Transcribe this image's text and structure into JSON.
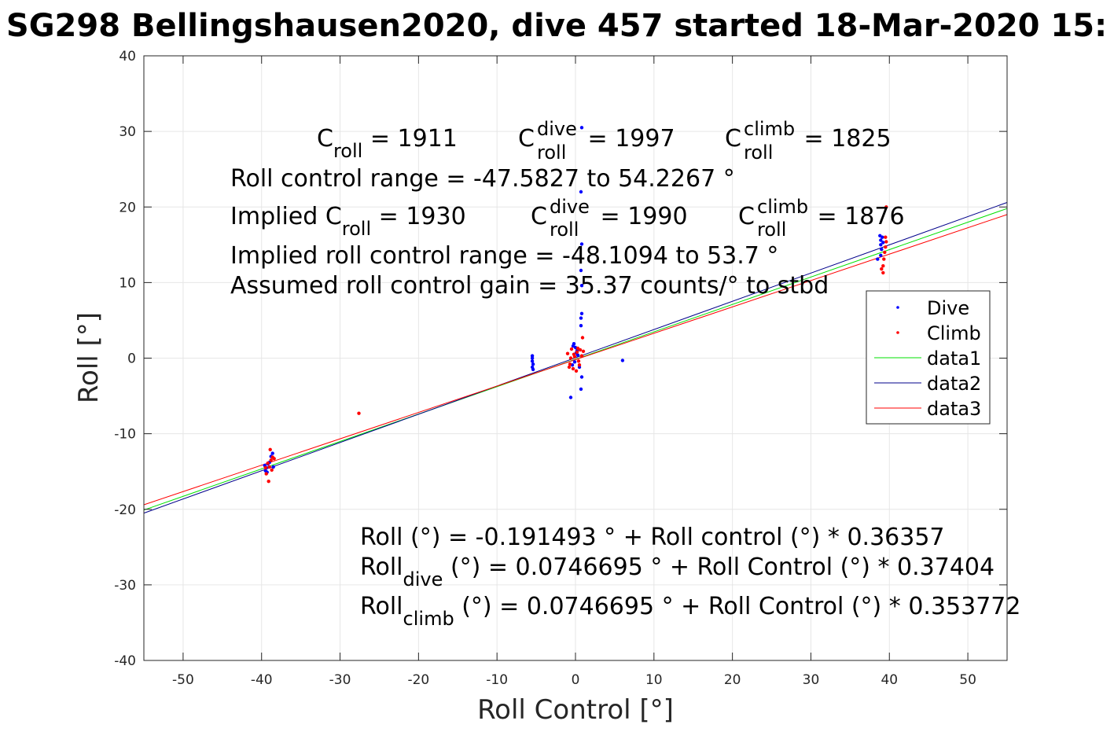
{
  "chart_data": {
    "type": "scatter",
    "title": "SG298 Bellingshausen2020, dive 457 started 18-Mar-2020 15:",
    "xlabel": "Roll Control [°]",
    "ylabel": "Roll [°]",
    "xlim": [
      -55,
      55
    ],
    "ylim": [
      -40,
      40
    ],
    "xticks": [
      -50,
      -40,
      -30,
      -20,
      -10,
      0,
      10,
      20,
      30,
      40,
      50
    ],
    "yticks": [
      -40,
      -30,
      -20,
      -10,
      0,
      10,
      20,
      30,
      40
    ],
    "xtick_labels": [
      "-50",
      "-40",
      "-30",
      "-20",
      "-10",
      "0",
      "10",
      "20",
      "30",
      "40",
      "50"
    ],
    "ytick_labels": [
      "-40",
      "-30",
      "-20",
      "-10",
      "0",
      "10",
      "20",
      "30",
      "40"
    ],
    "grid": true,
    "legend_position": "right",
    "series": [
      {
        "name": "Dive",
        "kind": "scatter",
        "color": "#0000ff",
        "points": [
          [
            -39.6,
            -14.2
          ],
          [
            -39.5,
            -14.9
          ],
          [
            -39.3,
            -15.1
          ],
          [
            -39.4,
            -14.5
          ],
          [
            -39.0,
            -13.8
          ],
          [
            -38.8,
            -13.0
          ],
          [
            -38.6,
            -12.6
          ],
          [
            -38.5,
            -14.4
          ],
          [
            -39.2,
            -14.0
          ],
          [
            -5.5,
            0.0
          ],
          [
            -5.5,
            -0.4
          ],
          [
            -5.4,
            -0.8
          ],
          [
            -5.5,
            -1.2
          ],
          [
            -5.4,
            -1.5
          ],
          [
            -5.5,
            0.3
          ],
          [
            -0.6,
            -5.2
          ],
          [
            -0.3,
            1.6
          ],
          [
            -0.2,
            1.9
          ],
          [
            0.0,
            1.4
          ],
          [
            0.2,
            1.0
          ],
          [
            0.3,
            0.4
          ],
          [
            -0.1,
            -0.5
          ],
          [
            0.5,
            -1.2
          ],
          [
            0.8,
            30.5
          ],
          [
            0.7,
            22.0
          ],
          [
            0.8,
            15.1
          ],
          [
            0.7,
            11.6
          ],
          [
            0.8,
            9.6
          ],
          [
            0.8,
            5.9
          ],
          [
            0.7,
            5.3
          ],
          [
            0.7,
            4.3
          ],
          [
            0.8,
            -2.5
          ],
          [
            0.7,
            -4.1
          ],
          [
            -0.4,
            -0.9
          ],
          [
            0.1,
            0.7
          ],
          [
            6.0,
            -0.3
          ],
          [
            38.5,
            13.1
          ],
          [
            38.8,
            16.2
          ],
          [
            38.9,
            15.6
          ],
          [
            38.9,
            15.0
          ],
          [
            39.0,
            14.4
          ],
          [
            38.9,
            13.6
          ],
          [
            39.1,
            16.0
          ],
          [
            39.2,
            15.3
          ]
        ]
      },
      {
        "name": "Climb",
        "kind": "scatter",
        "color": "#ff0000",
        "points": [
          [
            -39.5,
            -14.5
          ],
          [
            -39.4,
            -15.3
          ],
          [
            -39.1,
            -16.3
          ],
          [
            -38.9,
            -12.1
          ],
          [
            -38.8,
            -13.5
          ],
          [
            -38.4,
            -13.3
          ],
          [
            -38.7,
            -14.8
          ],
          [
            -39.2,
            -13.9
          ],
          [
            -38.6,
            -13.1
          ],
          [
            -39.0,
            -14.4
          ],
          [
            -27.6,
            -7.3
          ],
          [
            -1.0,
            0.6
          ],
          [
            -0.7,
            -0.8
          ],
          [
            -0.5,
            1.2
          ],
          [
            -0.3,
            -1.4
          ],
          [
            -0.1,
            0.2
          ],
          [
            0.2,
            0.8
          ],
          [
            0.4,
            -0.4
          ],
          [
            0.6,
            1.1
          ],
          [
            0.9,
            2.7
          ],
          [
            0.8,
            0.3
          ],
          [
            -0.8,
            -1.2
          ],
          [
            0.1,
            -1.7
          ],
          [
            -0.2,
            0.5
          ],
          [
            0.5,
            -0.9
          ],
          [
            1.0,
            0.9
          ],
          [
            -0.6,
            0.0
          ],
          [
            0.3,
            1.3
          ],
          [
            39.0,
            11.8
          ],
          [
            39.2,
            11.3
          ],
          [
            39.3,
            13.1
          ],
          [
            39.5,
            14.7
          ],
          [
            39.6,
            15.4
          ],
          [
            39.5,
            16.0
          ],
          [
            39.2,
            12.2
          ],
          [
            39.4,
            14.0
          ],
          [
            39.6,
            20.0
          ]
        ]
      },
      {
        "name": "data1",
        "kind": "line",
        "color": "#00e000",
        "x": [
          -55,
          55
        ],
        "y": [
          -20.1,
          19.8
        ]
      },
      {
        "name": "data2",
        "kind": "line",
        "color": "#00008b",
        "x": [
          -55,
          55
        ],
        "y": [
          -20.5,
          20.6
        ]
      },
      {
        "name": "data3",
        "kind": "line",
        "color": "#ff0000",
        "x": [
          -55,
          55
        ],
        "y": [
          -19.4,
          19.0
        ]
      }
    ],
    "annotations": {
      "line1": {
        "c_roll_main": "C",
        "c_roll_sub": "roll",
        "c_roll_value": " = 1911",
        "c_dive_main": "C",
        "c_dive_sup": "dive",
        "c_dive_sub": "roll",
        "c_dive_value": " = 1997",
        "c_climb_main": "C",
        "c_climb_sup": "climb",
        "c_climb_sub": "roll",
        "c_climb_value": " = 1825"
      },
      "line2": "Roll control range = -47.5827 to 54.2267 °",
      "line3": {
        "prefix": "Implied C",
        "sub": "roll",
        "value": " = 1930",
        "c_dive_main": "C",
        "c_dive_sup": "dive",
        "c_dive_sub": "roll",
        "c_dive_value": " = 1990",
        "c_climb_main": "C",
        "c_climb_sup": "climb",
        "c_climb_sub": "roll",
        "c_climb_value": " = 1876"
      },
      "line4": "Implied roll control range = -48.1094 to 53.7 °",
      "line5": "Assumed roll control gain = 35.37 counts/° to stbd",
      "eq1": "Roll (°) = -0.191493 ° + Roll control (°) * 0.36357",
      "eq2": {
        "main": "Roll",
        "sub": "dive",
        "rest": " (°) = 0.0746695 ° + Roll Control (°) * 0.37404"
      },
      "eq3": {
        "main": "Roll",
        "sub": "climb",
        "rest": " (°) = 0.0746695 ° + Roll Control (°) * 0.353772"
      }
    }
  }
}
